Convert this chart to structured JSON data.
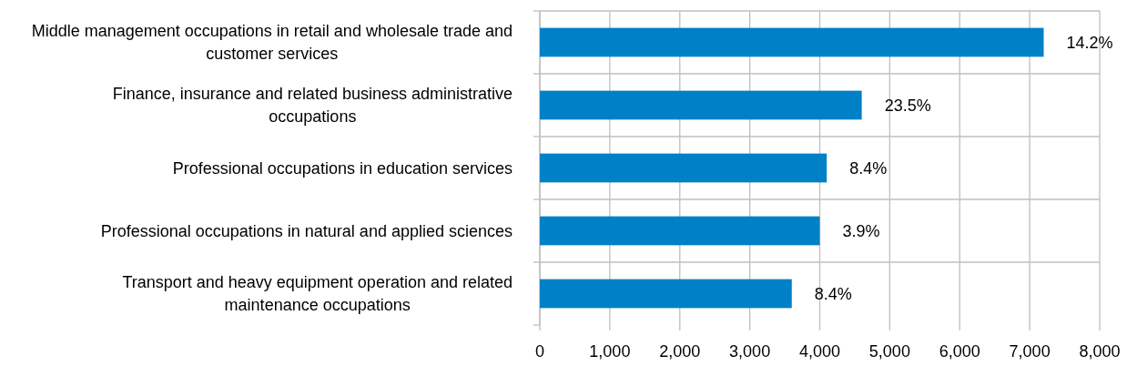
{
  "chart_data": {
    "type": "bar",
    "orientation": "horizontal",
    "categories": [
      "Middle management occupations in retail and wholesale trade and customer services",
      "Finance, insurance and related business administrative occupations",
      "Professional occupations in education services",
      "Professional occupations in natural and applied sciences",
      "Transport and heavy equipment operation and related maintenance occupations"
    ],
    "values": [
      7200,
      4600,
      4100,
      4000,
      3600
    ],
    "annotations": [
      {
        "text": "14.2%",
        "x": 7200,
        "y": "Middle management occupations in retail and wholesale trade and customer services"
      },
      {
        "text": "23.5%",
        "x": 4600,
        "y": "Finance, insurance and related business administrative occupations"
      },
      {
        "text": "8.4%",
        "x": 4100,
        "y": "Professional occupations in education services"
      },
      {
        "text": "3.9%",
        "x": 4000,
        "y": "Professional occupations in natural and applied sciences"
      },
      {
        "text": "8.4%",
        "x": 3600,
        "y": "Transport and heavy equipment operation and related maintenance occupations"
      }
    ],
    "color": "#0080c6",
    "xlim": [
      0,
      8000
    ],
    "xticks": [
      {
        "value": 0,
        "label": "0"
      },
      {
        "value": 1000,
        "label": "1,000"
      },
      {
        "value": 2000,
        "label": "2,000"
      },
      {
        "value": 3000,
        "label": "3,000"
      },
      {
        "value": 4000,
        "label": "4,000"
      },
      {
        "value": 5000,
        "label": "5,000"
      },
      {
        "value": 6000,
        "label": "6,000"
      },
      {
        "value": 7000,
        "label": "7,000"
      },
      {
        "value": 8000,
        "label": "8,000"
      }
    ],
    "grid": true
  }
}
